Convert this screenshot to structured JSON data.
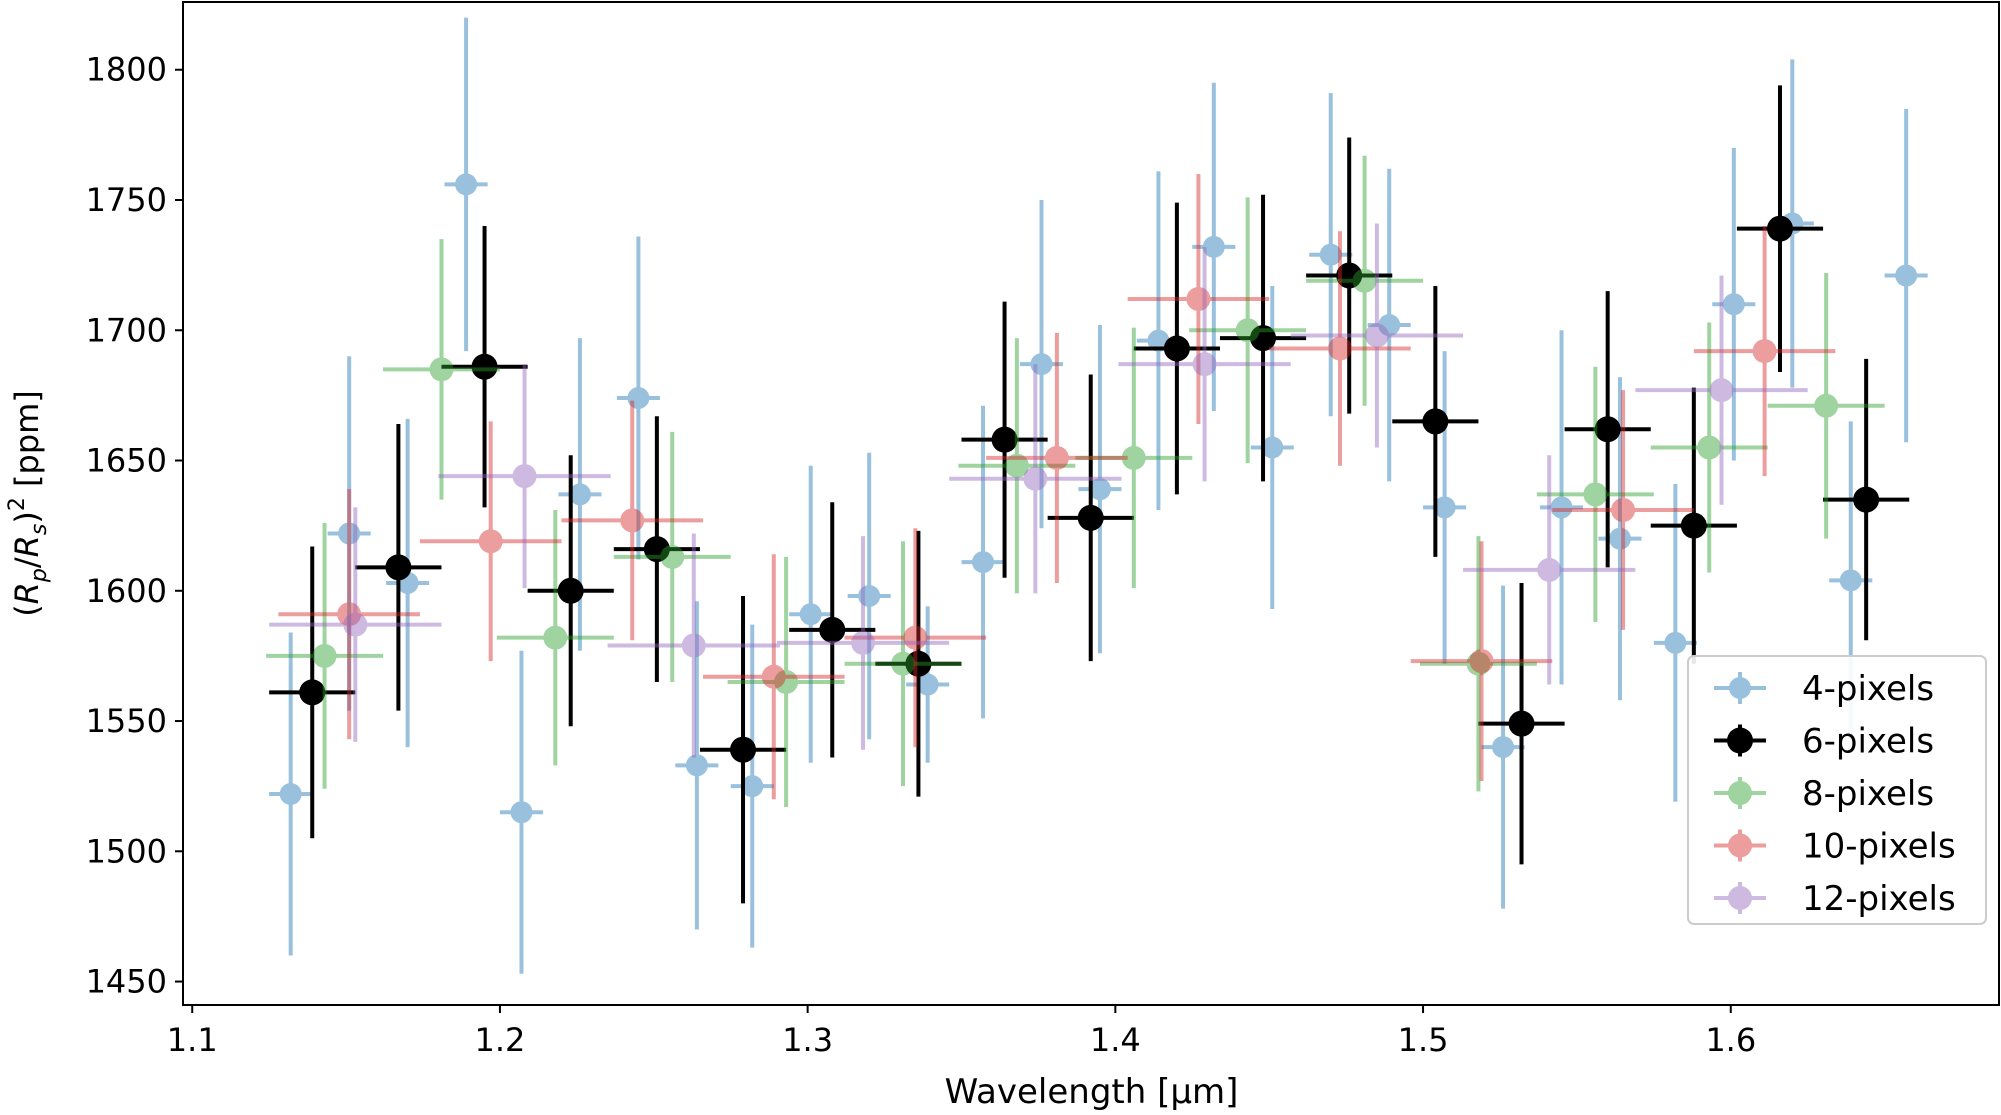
{
  "chart_data": {
    "type": "scatter",
    "title": "",
    "xlabel": "Wavelength [μm]",
    "ylabel": "(R_p/R_s)^2 [ppm]",
    "xlim": [
      1.097,
      1.6875
    ],
    "ylim": [
      1441,
      1826
    ],
    "x_ticks": [
      1.1,
      1.2,
      1.3,
      1.4,
      1.5,
      1.6
    ],
    "x_tick_labels": [
      "1.1",
      "1.2",
      "1.3",
      "1.4",
      "1.5",
      "1.6"
    ],
    "y_ticks": [
      1450,
      1500,
      1550,
      1600,
      1650,
      1700,
      1750,
      1800
    ],
    "y_tick_labels": [
      "1450",
      "1500",
      "1550",
      "1600",
      "1650",
      "1700",
      "1750",
      "1800"
    ],
    "grid": false,
    "legend_position": "lower-right",
    "series": [
      {
        "name": "4-pixels",
        "color": "#1f77b4",
        "alpha": 0.45,
        "marker_size": 11,
        "points": [
          {
            "x": 1.132,
            "y": 1522,
            "xerr": 0.007,
            "yerr": 62
          },
          {
            "x": 1.151,
            "y": 1622,
            "xerr": 0.007,
            "yerr": 68
          },
          {
            "x": 1.17,
            "y": 1603,
            "xerr": 0.007,
            "yerr": 63
          },
          {
            "x": 1.189,
            "y": 1756,
            "xerr": 0.007,
            "yerr": 64
          },
          {
            "x": 1.207,
            "y": 1515,
            "xerr": 0.007,
            "yerr": 62
          },
          {
            "x": 1.226,
            "y": 1637,
            "xerr": 0.007,
            "yerr": 60
          },
          {
            "x": 1.245,
            "y": 1674,
            "xerr": 0.007,
            "yerr": 62
          },
          {
            "x": 1.264,
            "y": 1533,
            "xerr": 0.007,
            "yerr": 63
          },
          {
            "x": 1.282,
            "y": 1525,
            "xerr": 0.007,
            "yerr": 62
          },
          {
            "x": 1.301,
            "y": 1591,
            "xerr": 0.007,
            "yerr": 57
          },
          {
            "x": 1.32,
            "y": 1598,
            "xerr": 0.007,
            "yerr": 55
          },
          {
            "x": 1.339,
            "y": 1564,
            "xerr": 0.007,
            "yerr": 30
          },
          {
            "x": 1.357,
            "y": 1611,
            "xerr": 0.007,
            "yerr": 60
          },
          {
            "x": 1.376,
            "y": 1687,
            "xerr": 0.007,
            "yerr": 63
          },
          {
            "x": 1.395,
            "y": 1639,
            "xerr": 0.007,
            "yerr": 63
          },
          {
            "x": 1.414,
            "y": 1696,
            "xerr": 0.007,
            "yerr": 65
          },
          {
            "x": 1.432,
            "y": 1732,
            "xerr": 0.007,
            "yerr": 63
          },
          {
            "x": 1.451,
            "y": 1655,
            "xerr": 0.007,
            "yerr": 62
          },
          {
            "x": 1.47,
            "y": 1729,
            "xerr": 0.007,
            "yerr": 62
          },
          {
            "x": 1.489,
            "y": 1702,
            "xerr": 0.007,
            "yerr": 60
          },
          {
            "x": 1.507,
            "y": 1632,
            "xerr": 0.007,
            "yerr": 60
          },
          {
            "x": 1.526,
            "y": 1540,
            "xerr": 0.007,
            "yerr": 62
          },
          {
            "x": 1.545,
            "y": 1632,
            "xerr": 0.007,
            "yerr": 68
          },
          {
            "x": 1.564,
            "y": 1620,
            "xerr": 0.007,
            "yerr": 62
          },
          {
            "x": 1.582,
            "y": 1580,
            "xerr": 0.007,
            "yerr": 61
          },
          {
            "x": 1.601,
            "y": 1710,
            "xerr": 0.007,
            "yerr": 60
          },
          {
            "x": 1.62,
            "y": 1741,
            "xerr": 0.007,
            "yerr": 63
          },
          {
            "x": 1.639,
            "y": 1604,
            "xerr": 0.007,
            "yerr": 61
          },
          {
            "x": 1.657,
            "y": 1721,
            "xerr": 0.007,
            "yerr": 64
          }
        ]
      },
      {
        "name": "6-pixels",
        "color": "#000000",
        "alpha": 1.0,
        "marker_size": 13,
        "points": [
          {
            "x": 1.139,
            "y": 1561,
            "xerr": 0.014,
            "yerr": 56
          },
          {
            "x": 1.167,
            "y": 1609,
            "xerr": 0.014,
            "yerr": 55
          },
          {
            "x": 1.195,
            "y": 1686,
            "xerr": 0.014,
            "yerr": 54
          },
          {
            "x": 1.223,
            "y": 1600,
            "xerr": 0.014,
            "yerr": 52
          },
          {
            "x": 1.251,
            "y": 1616,
            "xerr": 0.014,
            "yerr": 51
          },
          {
            "x": 1.279,
            "y": 1539,
            "xerr": 0.014,
            "yerr": 59
          },
          {
            "x": 1.308,
            "y": 1585,
            "xerr": 0.014,
            "yerr": 49
          },
          {
            "x": 1.336,
            "y": 1572,
            "xerr": 0.014,
            "yerr": 51
          },
          {
            "x": 1.364,
            "y": 1658,
            "xerr": 0.014,
            "yerr": 53
          },
          {
            "x": 1.392,
            "y": 1628,
            "xerr": 0.014,
            "yerr": 55
          },
          {
            "x": 1.42,
            "y": 1693,
            "xerr": 0.014,
            "yerr": 56
          },
          {
            "x": 1.448,
            "y": 1697,
            "xerr": 0.014,
            "yerr": 55
          },
          {
            "x": 1.476,
            "y": 1721,
            "xerr": 0.014,
            "yerr": 53
          },
          {
            "x": 1.504,
            "y": 1665,
            "xerr": 0.014,
            "yerr": 52
          },
          {
            "x": 1.532,
            "y": 1549,
            "xerr": 0.014,
            "yerr": 54
          },
          {
            "x": 1.56,
            "y": 1662,
            "xerr": 0.014,
            "yerr": 53
          },
          {
            "x": 1.588,
            "y": 1625,
            "xerr": 0.014,
            "yerr": 53
          },
          {
            "x": 1.616,
            "y": 1739,
            "xerr": 0.014,
            "yerr": 55
          },
          {
            "x": 1.644,
            "y": 1635,
            "xerr": 0.014,
            "yerr": 54
          }
        ]
      },
      {
        "name": "8-pixels",
        "color": "#2ca02c",
        "alpha": 0.45,
        "marker_size": 12,
        "points": [
          {
            "x": 1.143,
            "y": 1575,
            "xerr": 0.019,
            "yerr": 51
          },
          {
            "x": 1.181,
            "y": 1685,
            "xerr": 0.019,
            "yerr": 50
          },
          {
            "x": 1.218,
            "y": 1582,
            "xerr": 0.019,
            "yerr": 49
          },
          {
            "x": 1.256,
            "y": 1613,
            "xerr": 0.019,
            "yerr": 48
          },
          {
            "x": 1.293,
            "y": 1565,
            "xerr": 0.019,
            "yerr": 48
          },
          {
            "x": 1.331,
            "y": 1572,
            "xerr": 0.019,
            "yerr": 47
          },
          {
            "x": 1.368,
            "y": 1648,
            "xerr": 0.019,
            "yerr": 49
          },
          {
            "x": 1.406,
            "y": 1651,
            "xerr": 0.019,
            "yerr": 50
          },
          {
            "x": 1.443,
            "y": 1700,
            "xerr": 0.019,
            "yerr": 51
          },
          {
            "x": 1.481,
            "y": 1719,
            "xerr": 0.019,
            "yerr": 48
          },
          {
            "x": 1.518,
            "y": 1572,
            "xerr": 0.019,
            "yerr": 49
          },
          {
            "x": 1.556,
            "y": 1637,
            "xerr": 0.019,
            "yerr": 49
          },
          {
            "x": 1.593,
            "y": 1655,
            "xerr": 0.019,
            "yerr": 48
          },
          {
            "x": 1.631,
            "y": 1671,
            "xerr": 0.019,
            "yerr": 51
          }
        ]
      },
      {
        "name": "10-pixels",
        "color": "#d62728",
        "alpha": 0.45,
        "marker_size": 12,
        "points": [
          {
            "x": 1.151,
            "y": 1591,
            "xerr": 0.023,
            "yerr": 48
          },
          {
            "x": 1.197,
            "y": 1619,
            "xerr": 0.023,
            "yerr": 46
          },
          {
            "x": 1.243,
            "y": 1627,
            "xerr": 0.023,
            "yerr": 46
          },
          {
            "x": 1.289,
            "y": 1567,
            "xerr": 0.023,
            "yerr": 47
          },
          {
            "x": 1.335,
            "y": 1582,
            "xerr": 0.023,
            "yerr": 42
          },
          {
            "x": 1.381,
            "y": 1651,
            "xerr": 0.023,
            "yerr": 48
          },
          {
            "x": 1.427,
            "y": 1712,
            "xerr": 0.023,
            "yerr": 48
          },
          {
            "x": 1.473,
            "y": 1693,
            "xerr": 0.023,
            "yerr": 45
          },
          {
            "x": 1.519,
            "y": 1573,
            "xerr": 0.023,
            "yerr": 46
          },
          {
            "x": 1.565,
            "y": 1631,
            "xerr": 0.023,
            "yerr": 46
          },
          {
            "x": 1.611,
            "y": 1692,
            "xerr": 0.023,
            "yerr": 48
          }
        ]
      },
      {
        "name": "12-pixels",
        "color": "#9467bd",
        "alpha": 0.45,
        "marker_size": 12,
        "points": [
          {
            "x": 1.153,
            "y": 1587,
            "xerr": 0.028,
            "yerr": 45
          },
          {
            "x": 1.208,
            "y": 1644,
            "xerr": 0.028,
            "yerr": 43
          },
          {
            "x": 1.263,
            "y": 1579,
            "xerr": 0.028,
            "yerr": 43
          },
          {
            "x": 1.318,
            "y": 1580,
            "xerr": 0.028,
            "yerr": 41
          },
          {
            "x": 1.374,
            "y": 1643,
            "xerr": 0.028,
            "yerr": 44
          },
          {
            "x": 1.429,
            "y": 1687,
            "xerr": 0.028,
            "yerr": 45
          },
          {
            "x": 1.485,
            "y": 1698,
            "xerr": 0.028,
            "yerr": 43
          },
          {
            "x": 1.541,
            "y": 1608,
            "xerr": 0.028,
            "yerr": 44
          },
          {
            "x": 1.597,
            "y": 1677,
            "xerr": 0.028,
            "yerr": 44
          }
        ]
      }
    ]
  }
}
